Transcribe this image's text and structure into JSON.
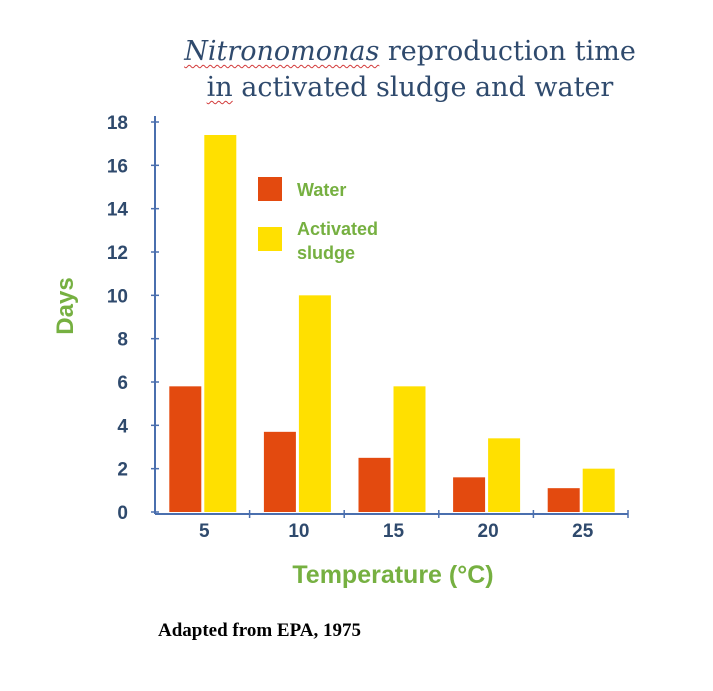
{
  "title": {
    "italic_part": "Nitronomonas",
    "rest_line1": " reproduction time",
    "line2_underlined": "in",
    "line2_rest": " activated sludge and water"
  },
  "source_note": "Adapted from EPA, 1975",
  "colors": {
    "water": "#e34a0f",
    "activated_sludge": "#ffe000",
    "axis": "#4a6fae",
    "tick_label": "#2f4a6d",
    "axis_title": "#76b041"
  },
  "chart_data": {
    "type": "bar",
    "title": "Nitronomonas reproduction time in activated sludge and water",
    "xlabel": "Temperature (°C)",
    "ylabel": "Days",
    "categories": [
      "5",
      "10",
      "15",
      "20",
      "25"
    ],
    "series": [
      {
        "name": "Water",
        "values": [
          5.8,
          3.7,
          2.5,
          1.6,
          1.1
        ]
      },
      {
        "name": "Activated sludge",
        "values": [
          17.4,
          10.0,
          5.8,
          3.4,
          2.0
        ]
      }
    ],
    "ylim": [
      0,
      18
    ],
    "yticks": [
      0,
      2,
      4,
      6,
      8,
      10,
      12,
      14,
      16,
      18
    ],
    "legend_position": "top-right",
    "grid": false
  }
}
